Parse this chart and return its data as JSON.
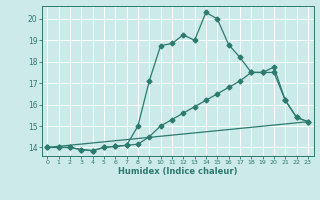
{
  "title": "",
  "xlabel": "Humidex (Indice chaleur)",
  "bg_color": "#cceaea",
  "grid_color": "#ffffff",
  "line_color": "#2d7a6e",
  "xlim": [
    -0.5,
    23.5
  ],
  "ylim": [
    13.6,
    20.6
  ],
  "yticks": [
    14,
    15,
    16,
    17,
    18,
    19,
    20
  ],
  "xticks": [
    0,
    1,
    2,
    3,
    4,
    5,
    6,
    7,
    8,
    9,
    10,
    11,
    12,
    13,
    14,
    15,
    16,
    17,
    18,
    19,
    20,
    21,
    22,
    23
  ],
  "series1_x": [
    0,
    1,
    2,
    3,
    4,
    5,
    6,
    7,
    8,
    9,
    10,
    11,
    12,
    13,
    14,
    15,
    16,
    17,
    18,
    19,
    20,
    21,
    22,
    23
  ],
  "series1_y": [
    14.0,
    14.0,
    14.0,
    13.9,
    13.85,
    14.0,
    14.05,
    14.1,
    15.0,
    17.1,
    18.75,
    18.85,
    19.25,
    19.0,
    20.3,
    20.0,
    18.8,
    18.2,
    17.5,
    17.5,
    17.75,
    16.2,
    15.4,
    15.2
  ],
  "series2_x": [
    0,
    1,
    2,
    3,
    4,
    5,
    6,
    7,
    8,
    9,
    10,
    11,
    12,
    13,
    14,
    15,
    16,
    17,
    18,
    19,
    20,
    21,
    22,
    23
  ],
  "series2_y": [
    14.0,
    14.0,
    14.0,
    13.9,
    13.85,
    14.0,
    14.05,
    14.1,
    14.15,
    14.5,
    15.0,
    15.3,
    15.6,
    15.9,
    16.2,
    16.5,
    16.8,
    17.1,
    17.5,
    17.5,
    17.5,
    16.2,
    15.4,
    15.2
  ],
  "series3_x": [
    0,
    23
  ],
  "series3_y": [
    14.0,
    15.2
  ]
}
